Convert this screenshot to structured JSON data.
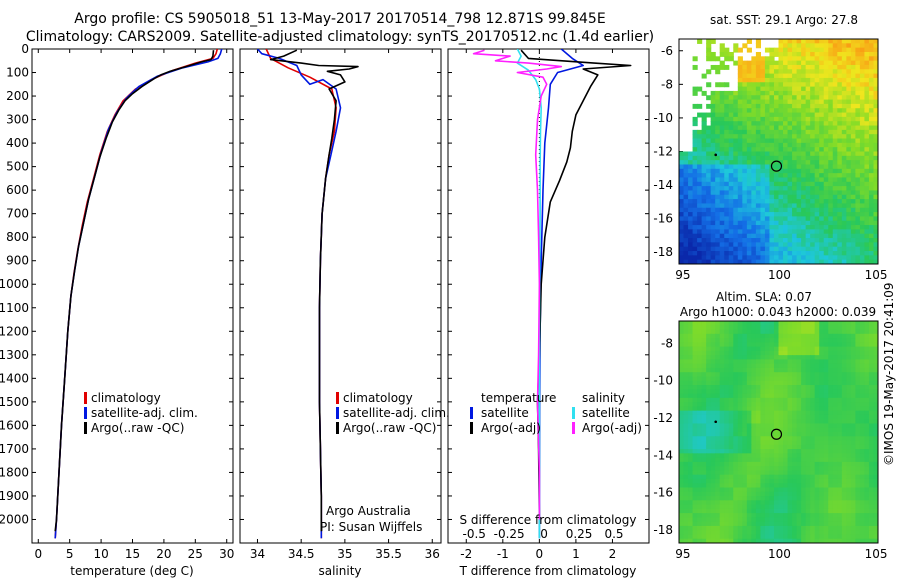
{
  "header": {
    "line1": "Argo profile: CS 5905018_51 13-May-2017 20170514_798 12.871S 99.845E",
    "line2": "Climatology: CARS2009. Satellite-adjusted climatology: synTS_20170512.nc (1.4d earlier)"
  },
  "watermark": "©IMOS 19-May-2017 20:41:09",
  "colors": {
    "climatology": "#e00000",
    "satellite": "#0018e0",
    "argo": "#000000",
    "sat_salinity": "#30e0f0",
    "argo_salinity": "#ff20ff"
  },
  "chart_data": [
    {
      "type": "line",
      "id": "temperature",
      "xlabel": "temperature (deg C)",
      "ylabel": "",
      "xlim": [
        -1,
        31
      ],
      "ylim": [
        2100,
        0
      ],
      "xticks": [
        0,
        5,
        10,
        15,
        20,
        25,
        30
      ],
      "yticks": [
        0,
        100,
        200,
        300,
        400,
        500,
        600,
        700,
        800,
        900,
        1000,
        1100,
        1200,
        1300,
        1400,
        1500,
        1600,
        1700,
        1800,
        1900,
        2000
      ],
      "legend": [
        "climatology",
        "satellite-adj. clim.",
        "Argo(..raw -QC)"
      ],
      "series": [
        {
          "name": "climatology",
          "color": "#e00000",
          "points": [
            [
              28.5,
              0
            ],
            [
              28.3,
              20
            ],
            [
              27.8,
              40
            ],
            [
              25,
              60
            ],
            [
              21.5,
              90
            ],
            [
              18,
              130
            ],
            [
              15.5,
              170
            ],
            [
              13.5,
              220
            ],
            [
              12.2,
              280
            ],
            [
              11,
              350
            ],
            [
              9.8,
              450
            ],
            [
              8.8,
              550
            ],
            [
              7.8,
              650
            ],
            [
              7,
              750
            ],
            [
              6.3,
              850
            ],
            [
              5.7,
              950
            ],
            [
              5.2,
              1050
            ],
            [
              4.7,
              1200
            ],
            [
              4.2,
              1400
            ],
            [
              3.7,
              1600
            ],
            [
              3.3,
              1800
            ],
            [
              2.9,
              2000
            ],
            [
              2.7,
              2080
            ]
          ]
        },
        {
          "name": "satellite-adj. clim.",
          "color": "#0018e0",
          "points": [
            [
              29.2,
              0
            ],
            [
              29,
              20
            ],
            [
              28.6,
              40
            ],
            [
              27,
              55
            ],
            [
              23,
              80
            ],
            [
              19,
              115
            ],
            [
              16,
              160
            ],
            [
              14,
              210
            ],
            [
              12.5,
              270
            ],
            [
              11.2,
              340
            ],
            [
              10,
              440
            ],
            [
              9,
              540
            ],
            [
              8,
              640
            ],
            [
              7.2,
              740
            ],
            [
              6.4,
              840
            ],
            [
              5.8,
              940
            ],
            [
              5.2,
              1050
            ],
            [
              4.7,
              1200
            ],
            [
              4.2,
              1400
            ],
            [
              3.7,
              1600
            ],
            [
              3.3,
              1800
            ],
            [
              2.9,
              2000
            ],
            [
              2.7,
              2080
            ]
          ]
        },
        {
          "name": "Argo(..raw -QC)",
          "color": "#000000",
          "points": [
            [
              27.9,
              5
            ],
            [
              27.8,
              30
            ],
            [
              27.5,
              45
            ],
            [
              26,
              55
            ],
            [
              23.5,
              75
            ],
            [
              21,
              95
            ],
            [
              19.5,
              110
            ],
            [
              18.5,
              125
            ],
            [
              16.5,
              160
            ],
            [
              15,
              190
            ],
            [
              13.8,
              220
            ],
            [
              12.8,
              260
            ],
            [
              11.8,
              310
            ],
            [
              10.8,
              380
            ],
            [
              9.8,
              460
            ],
            [
              9,
              540
            ],
            [
              8,
              640
            ],
            [
              7.2,
              740
            ],
            [
              6.4,
              840
            ],
            [
              5.8,
              940
            ],
            [
              5.2,
              1050
            ],
            [
              4.7,
              1200
            ],
            [
              4.2,
              1400
            ],
            [
              3.7,
              1600
            ],
            [
              3.3,
              1800
            ],
            [
              2.9,
              2000
            ],
            [
              2.7,
              2050
            ]
          ]
        }
      ]
    },
    {
      "type": "line",
      "id": "salinity",
      "xlabel": "salinity",
      "xlim": [
        33.8,
        36.1
      ],
      "ylim": [
        2100,
        0
      ],
      "xticks": [
        34,
        34.5,
        35,
        35.5,
        36
      ],
      "legend": [
        "climatology",
        "satellite-adj. clim.",
        "Argo(..raw -QC)"
      ],
      "annotation1": "Argo Australia",
      "annotation2": "PI: Susan Wijffels",
      "series": [
        {
          "name": "climatology",
          "color": "#e00000",
          "points": [
            [
              34.1,
              0
            ],
            [
              34.15,
              40
            ],
            [
              34.35,
              80
            ],
            [
              34.6,
              120
            ],
            [
              34.85,
              170
            ],
            [
              34.9,
              250
            ],
            [
              34.88,
              350
            ],
            [
              34.82,
              450
            ],
            [
              34.78,
              550
            ],
            [
              34.74,
              700
            ],
            [
              34.72,
              900
            ],
            [
              34.71,
              1100
            ],
            [
              34.71,
              1300
            ],
            [
              34.71,
              1500
            ],
            [
              34.72,
              1700
            ],
            [
              34.73,
              1900
            ],
            [
              34.73,
              2080
            ]
          ]
        },
        {
          "name": "satellite-adj. clim.",
          "color": "#0018e0",
          "points": [
            [
              34.0,
              0
            ],
            [
              34.05,
              20
            ],
            [
              34.25,
              40
            ],
            [
              34.45,
              70
            ],
            [
              34.5,
              110
            ],
            [
              34.6,
              150
            ],
            [
              34.75,
              130
            ],
            [
              34.9,
              170
            ],
            [
              34.95,
              250
            ],
            [
              34.9,
              350
            ],
            [
              34.84,
              450
            ],
            [
              34.78,
              550
            ],
            [
              34.74,
              700
            ],
            [
              34.72,
              900
            ],
            [
              34.71,
              1100
            ],
            [
              34.71,
              1300
            ],
            [
              34.71,
              1500
            ],
            [
              34.72,
              1700
            ],
            [
              34.73,
              1900
            ],
            [
              34.73,
              2080
            ]
          ]
        },
        {
          "name": "Argo(..raw -QC)",
          "color": "#000000",
          "points": [
            [
              34.45,
              5
            ],
            [
              34.3,
              30
            ],
            [
              34.15,
              45
            ],
            [
              34.5,
              60
            ],
            [
              34.7,
              70
            ],
            [
              35.15,
              75
            ],
            [
              35.05,
              85
            ],
            [
              34.8,
              95
            ],
            [
              34.95,
              110
            ],
            [
              35.0,
              140
            ],
            [
              34.82,
              170
            ],
            [
              34.9,
              220
            ],
            [
              34.88,
              300
            ],
            [
              34.85,
              380
            ],
            [
              34.82,
              450
            ],
            [
              34.78,
              550
            ],
            [
              34.74,
              700
            ],
            [
              34.72,
              900
            ],
            [
              34.71,
              1100
            ],
            [
              34.71,
              1300
            ],
            [
              34.71,
              1500
            ],
            [
              34.72,
              1700
            ],
            [
              34.73,
              1900
            ],
            [
              34.73,
              2050
            ]
          ]
        }
      ]
    },
    {
      "type": "line",
      "id": "difference",
      "xlabel": "T difference from climatology",
      "x2label": "S difference from climatology",
      "xlim": [
        -2.5,
        3
      ],
      "ylim": [
        2100,
        0
      ],
      "xticks": [
        -2,
        -1,
        0,
        1,
        2
      ],
      "s_xticks": [
        "-0.5",
        "-0.25",
        "0",
        "0.25",
        "0.5"
      ],
      "legend_left_title": "temperature",
      "legend_right_title": "salinity",
      "legend_left": [
        "satellite",
        "Argo(-adj)"
      ],
      "legend_right": [
        "satellite",
        "Argo(-adj)"
      ],
      "series": [
        {
          "name": "satellite (T)",
          "color": "#0018e0",
          "points": [
            [
              0.6,
              0
            ],
            [
              0.9,
              40
            ],
            [
              1.2,
              70
            ],
            [
              0.5,
              100
            ],
            [
              0.3,
              150
            ],
            [
              0.25,
              250
            ],
            [
              0.15,
              400
            ],
            [
              0.1,
              600
            ],
            [
              0.05,
              900
            ],
            [
              0.02,
              1200
            ],
            [
              0.01,
              1500
            ],
            [
              0,
              1900
            ],
            [
              0,
              2080
            ]
          ]
        },
        {
          "name": "Argo(-adj) (T)",
          "color": "#000000",
          "points": [
            [
              -0.5,
              5
            ],
            [
              -0.3,
              40
            ],
            [
              1.5,
              60
            ],
            [
              2.5,
              70
            ],
            [
              1.2,
              85
            ],
            [
              1.6,
              110
            ],
            [
              1.4,
              160
            ],
            [
              1.2,
              220
            ],
            [
              1.0,
              280
            ],
            [
              0.9,
              350
            ],
            [
              0.85,
              420
            ],
            [
              0.75,
              480
            ],
            [
              0.55,
              560
            ],
            [
              0.3,
              650
            ],
            [
              0.15,
              800
            ],
            [
              0.05,
              1000
            ],
            [
              0.0,
              1300
            ],
            [
              -0.05,
              1500
            ],
            [
              -0.02,
              1700
            ],
            [
              0,
              2000
            ]
          ]
        },
        {
          "name": "satellite (S)",
          "color": "#30e0f0",
          "points": [
            [
              -0.6,
              0
            ],
            [
              -0.5,
              30
            ],
            [
              -0.6,
              60
            ],
            [
              -0.3,
              90
            ],
            [
              -0.1,
              130
            ],
            [
              0,
              170
            ],
            [
              0.05,
              250
            ],
            [
              0.03,
              350
            ],
            [
              0.02,
              500
            ],
            [
              0.02,
              700
            ],
            [
              0.01,
              900
            ],
            [
              0,
              1200
            ],
            [
              0,
              1500
            ],
            [
              0,
              1800
            ],
            [
              0,
              2080
            ]
          ]
        },
        {
          "name": "Argo(-adj) (S)",
          "color": "#ff20ff",
          "points": [
            [
              -1.5,
              5
            ],
            [
              -1.8,
              20
            ],
            [
              -0.8,
              30
            ],
            [
              -1.2,
              50
            ],
            [
              -0.3,
              60
            ],
            [
              0.6,
              75
            ],
            [
              0.2,
              85
            ],
            [
              -0.6,
              100
            ],
            [
              0.1,
              120
            ],
            [
              0.2,
              150
            ],
            [
              0.05,
              200
            ],
            [
              -0.05,
              300
            ],
            [
              -0.1,
              450
            ],
            [
              -0.05,
              600
            ],
            [
              -0.02,
              800
            ],
            [
              0,
              1000
            ],
            [
              -0.02,
              1300
            ],
            [
              -0.05,
              1500
            ],
            [
              0,
              1800
            ],
            [
              0,
              2000
            ]
          ]
        }
      ]
    },
    {
      "type": "heatmap",
      "id": "sst_map",
      "title": "sat. SST: 29.1  Argo: 27.8",
      "xlim": [
        94.8,
        105.1
      ],
      "ylim": [
        -18.7,
        -5.3
      ],
      "xticks": [
        95,
        100,
        105
      ],
      "yticks": [
        -6,
        -8,
        -10,
        -12,
        -14,
        -16,
        -18
      ],
      "argo_position": [
        99.845,
        -12.871
      ],
      "prior_position": [
        96.7,
        -12.2
      ]
    },
    {
      "type": "heatmap",
      "id": "sla_map",
      "title1": "Altim. SLA: 0.07",
      "title2": "Argo h1000: 0.043  h2000: 0.039",
      "xlim": [
        94.8,
        105.1
      ],
      "ylim": [
        -18.7,
        -6.8
      ],
      "xticks": [
        95,
        100,
        105
      ],
      "yticks": [
        -8,
        -10,
        -12,
        -14,
        -16,
        -18
      ],
      "argo_position": [
        99.845,
        -12.871
      ],
      "prior_position": [
        96.7,
        -12.2
      ]
    }
  ]
}
